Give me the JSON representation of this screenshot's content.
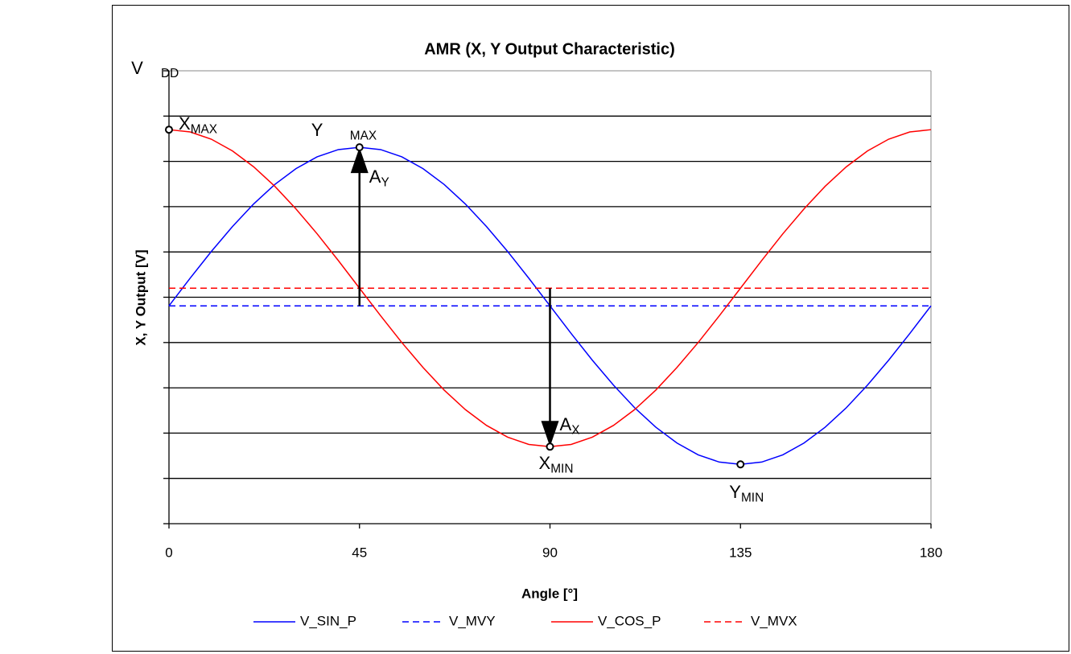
{
  "chart_data": {
    "type": "line",
    "title": "AMR (X, Y Output Characteristic)",
    "x_label": "Angle [°]",
    "y_label": "X, Y Output [V]",
    "x": [
      0,
      5,
      10,
      15,
      20,
      25,
      30,
      35,
      40,
      45,
      50,
      55,
      60,
      65,
      70,
      75,
      80,
      85,
      90,
      95,
      100,
      105,
      110,
      115,
      120,
      125,
      130,
      135,
      140,
      145,
      150,
      155,
      160,
      165,
      170,
      175,
      180
    ],
    "series": [
      {
        "name": "V_SIN_P",
        "color": "#0000ff",
        "dashed": false,
        "values": [
          4.81,
          5.42,
          6.01,
          6.56,
          7.06,
          7.49,
          7.84,
          8.1,
          8.26,
          8.31,
          8.26,
          8.1,
          7.84,
          7.49,
          7.06,
          6.56,
          6.01,
          5.42,
          4.81,
          4.2,
          3.61,
          3.06,
          2.56,
          2.13,
          1.78,
          1.52,
          1.36,
          1.31,
          1.36,
          1.52,
          1.78,
          2.13,
          2.56,
          3.06,
          3.61,
          4.2,
          4.81
        ]
      },
      {
        "name": "V_MVY",
        "color": "#0000ff",
        "dashed": true,
        "values": [
          4.81,
          4.81,
          4.81,
          4.81,
          4.81,
          4.81,
          4.81,
          4.81,
          4.81,
          4.81,
          4.81,
          4.81,
          4.81,
          4.81,
          4.81,
          4.81,
          4.81,
          4.81,
          4.81,
          4.81,
          4.81,
          4.81,
          4.81,
          4.81,
          4.81,
          4.81,
          4.81,
          4.81,
          4.81,
          4.81,
          4.81,
          4.81,
          4.81,
          4.81,
          4.81,
          4.81,
          4.81
        ]
      },
      {
        "name": "V_COS_P",
        "color": "#ff0000",
        "dashed": false,
        "values": [
          8.7,
          8.65,
          8.49,
          8.23,
          7.88,
          7.45,
          6.95,
          6.4,
          5.81,
          5.2,
          4.59,
          4.0,
          3.45,
          2.95,
          2.52,
          2.17,
          1.91,
          1.75,
          1.7,
          1.75,
          1.91,
          2.17,
          2.52,
          2.95,
          3.45,
          4.0,
          4.59,
          5.2,
          5.81,
          6.4,
          6.95,
          7.45,
          7.88,
          8.23,
          8.49,
          8.65,
          8.7
        ]
      },
      {
        "name": "V_MVX",
        "color": "#ff0000",
        "dashed": true,
        "values": [
          5.2,
          5.2,
          5.2,
          5.2,
          5.2,
          5.2,
          5.2,
          5.2,
          5.2,
          5.2,
          5.2,
          5.2,
          5.2,
          5.2,
          5.2,
          5.2,
          5.2,
          5.2,
          5.2,
          5.2,
          5.2,
          5.2,
          5.2,
          5.2,
          5.2,
          5.2,
          5.2,
          5.2,
          5.2,
          5.2,
          5.2,
          5.2,
          5.2,
          5.2,
          5.2,
          5.2,
          5.2
        ]
      }
    ],
    "xlim": [
      0,
      180
    ],
    "xticks": [
      0,
      45,
      90,
      135,
      180
    ],
    "ylim": [
      0,
      10
    ],
    "yticks": [
      0,
      1,
      2,
      3,
      4,
      5,
      6,
      7,
      8,
      9,
      {
        "value": 10,
        "label": "V",
        "sub": "DD"
      }
    ],
    "grid": true,
    "legend": "bottom",
    "points": [
      {
        "label": "X",
        "sub": "MAX",
        "x": 0,
        "y": 8.7
      },
      {
        "label": "Y",
        "sub": "MAX",
        "x": 45,
        "y": 8.31
      },
      {
        "label": "X",
        "sub": "MIN",
        "x": 90,
        "y": 1.7
      },
      {
        "label": "Y",
        "sub": "MIN",
        "x": 135,
        "y": 1.31
      }
    ],
    "arrows": [
      {
        "label": "A",
        "sub": "Y",
        "x": 45,
        "from": 4.81,
        "to": 8.31
      },
      {
        "label": "A",
        "sub": "X",
        "x": 90,
        "from": 5.2,
        "to": 1.7
      }
    ]
  }
}
